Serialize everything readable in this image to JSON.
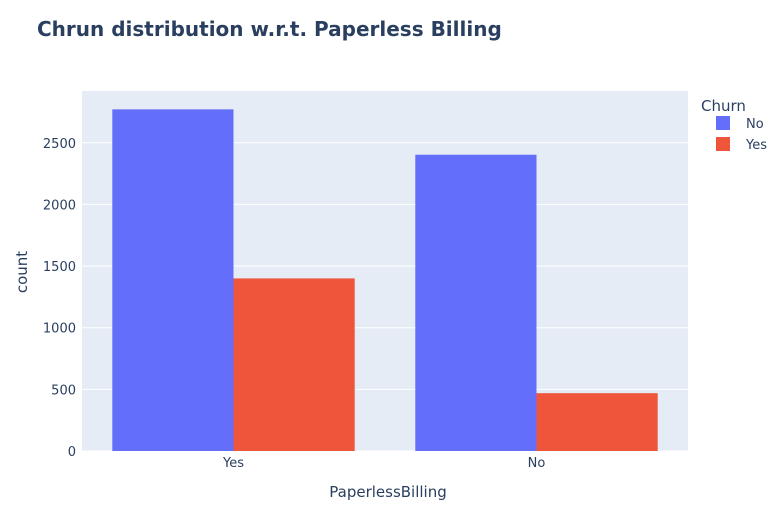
{
  "chart_data": {
    "type": "bar",
    "title": "Chrun distribution w.r.t. Paperless Billing",
    "xlabel": "PaperlessBilling",
    "ylabel": "count",
    "categories": [
      "Yes",
      "No"
    ],
    "series": [
      {
        "name": "No",
        "values": [
          2771,
          2403
        ],
        "color": "#636EFA"
      },
      {
        "name": "Yes",
        "values": [
          1400,
          469
        ],
        "color": "#EF553B"
      }
    ],
    "ylim": [
      0,
      2920
    ],
    "yticks": [
      0,
      500,
      1000,
      1500,
      2000,
      2500
    ],
    "legend": {
      "title": "Churn",
      "position": "top-right"
    },
    "grid": true,
    "colors": {
      "plot_background": "#E5ECF6",
      "grid": "#FFFFFF",
      "title": "#2A3F5F",
      "text": "#2A3F5F"
    }
  }
}
